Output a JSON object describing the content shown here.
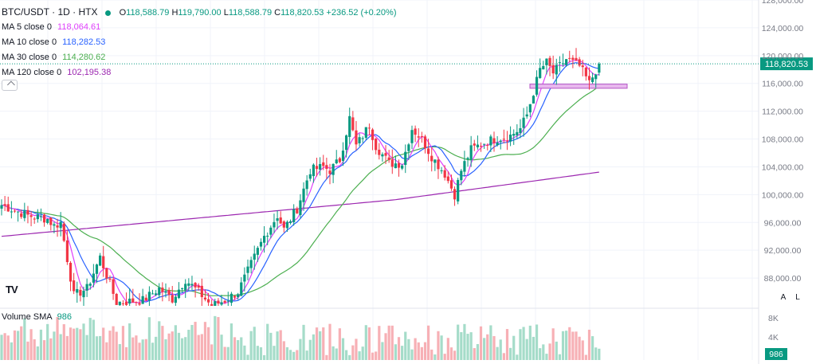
{
  "header": {
    "symbol": "BTC/USDT · 1D · HTX",
    "open_label": "O",
    "open": "118,588.79",
    "high_label": "H",
    "high": "119,790.00",
    "low_label": "L",
    "low": "118,588.79",
    "close_label": "C",
    "close": "118,820.53",
    "change": "+236.52 (+0.20%)"
  },
  "indicators": [
    {
      "label": "MA 5 close 0",
      "value": "118,064.61",
      "color": "#e040fb"
    },
    {
      "label": "MA 10 close 0",
      "value": "118,282.53",
      "color": "#2962ff"
    },
    {
      "label": "MA 30 close 0",
      "value": "114,280.62",
      "color": "#4caf50"
    },
    {
      "label": "MA 120 close 0",
      "value": "102,195.38",
      "color": "#9c27b0"
    }
  ],
  "volume_pane": {
    "label": "Volume SMA",
    "value": "986",
    "ticks": [
      "8K",
      "4K"
    ]
  },
  "scale_buttons": {
    "auto": "A",
    "log": "L"
  },
  "logo_text": "TV",
  "chart_data": {
    "type": "candlestick",
    "ylim": [
      84000,
      128000
    ],
    "price_ticks": [
      "128,000.00",
      "124,000.00",
      "120,000.00",
      "116,000.00",
      "112,000.00",
      "108,000.00",
      "104,000.00",
      "100,000.00",
      "96,000.00",
      "92,000.00",
      "88,000.00"
    ],
    "price_tick_values": [
      128000,
      124000,
      120000,
      116000,
      112000,
      108000,
      104000,
      100000,
      96000,
      92000,
      88000
    ],
    "last_price": 118820.53,
    "last_price_label": "118,820.53",
    "support_zone": [
      115300,
      115900
    ],
    "colors": {
      "up": "#089981",
      "down": "#f23645",
      "up_volume": "#a5dcc9",
      "down_volume": "#f7b0b5"
    },
    "close_anchors": [
      [
        0,
        98500
      ],
      [
        8,
        97000
      ],
      [
        14,
        96500
      ],
      [
        16,
        95500
      ],
      [
        18,
        96000
      ],
      [
        22,
        85500
      ],
      [
        26,
        86500
      ],
      [
        30,
        91000
      ],
      [
        35,
        84500
      ],
      [
        43,
        84800
      ],
      [
        48,
        86500
      ],
      [
        52,
        85000
      ],
      [
        56,
        87800
      ],
      [
        60,
        86000
      ],
      [
        64,
        84000
      ],
      [
        68,
        84800
      ],
      [
        72,
        86000
      ],
      [
        76,
        90000
      ],
      [
        80,
        94000
      ],
      [
        84,
        97000
      ],
      [
        86,
        95000
      ],
      [
        90,
        98000
      ],
      [
        94,
        103500
      ],
      [
        98,
        104000
      ],
      [
        100,
        103500
      ],
      [
        103,
        105000
      ],
      [
        106,
        111000
      ],
      [
        108,
        107000
      ],
      [
        110,
        108500
      ],
      [
        112,
        110000
      ],
      [
        114,
        107000
      ],
      [
        118,
        104500
      ],
      [
        122,
        104500
      ],
      [
        125,
        109500
      ],
      [
        128,
        108000
      ],
      [
        131,
        105500
      ],
      [
        135,
        103000
      ],
      [
        138,
        100000
      ],
      [
        140,
        103500
      ],
      [
        143,
        106500
      ],
      [
        147,
        107500
      ],
      [
        150,
        108000
      ],
      [
        155,
        108500
      ],
      [
        158,
        109500
      ],
      [
        160,
        111500
      ],
      [
        164,
        118000
      ],
      [
        166,
        119000
      ],
      [
        168,
        117500
      ],
      [
        172,
        119500
      ],
      [
        176,
        118500
      ],
      [
        179,
        116000
      ],
      [
        182,
        118820
      ]
    ]
  }
}
